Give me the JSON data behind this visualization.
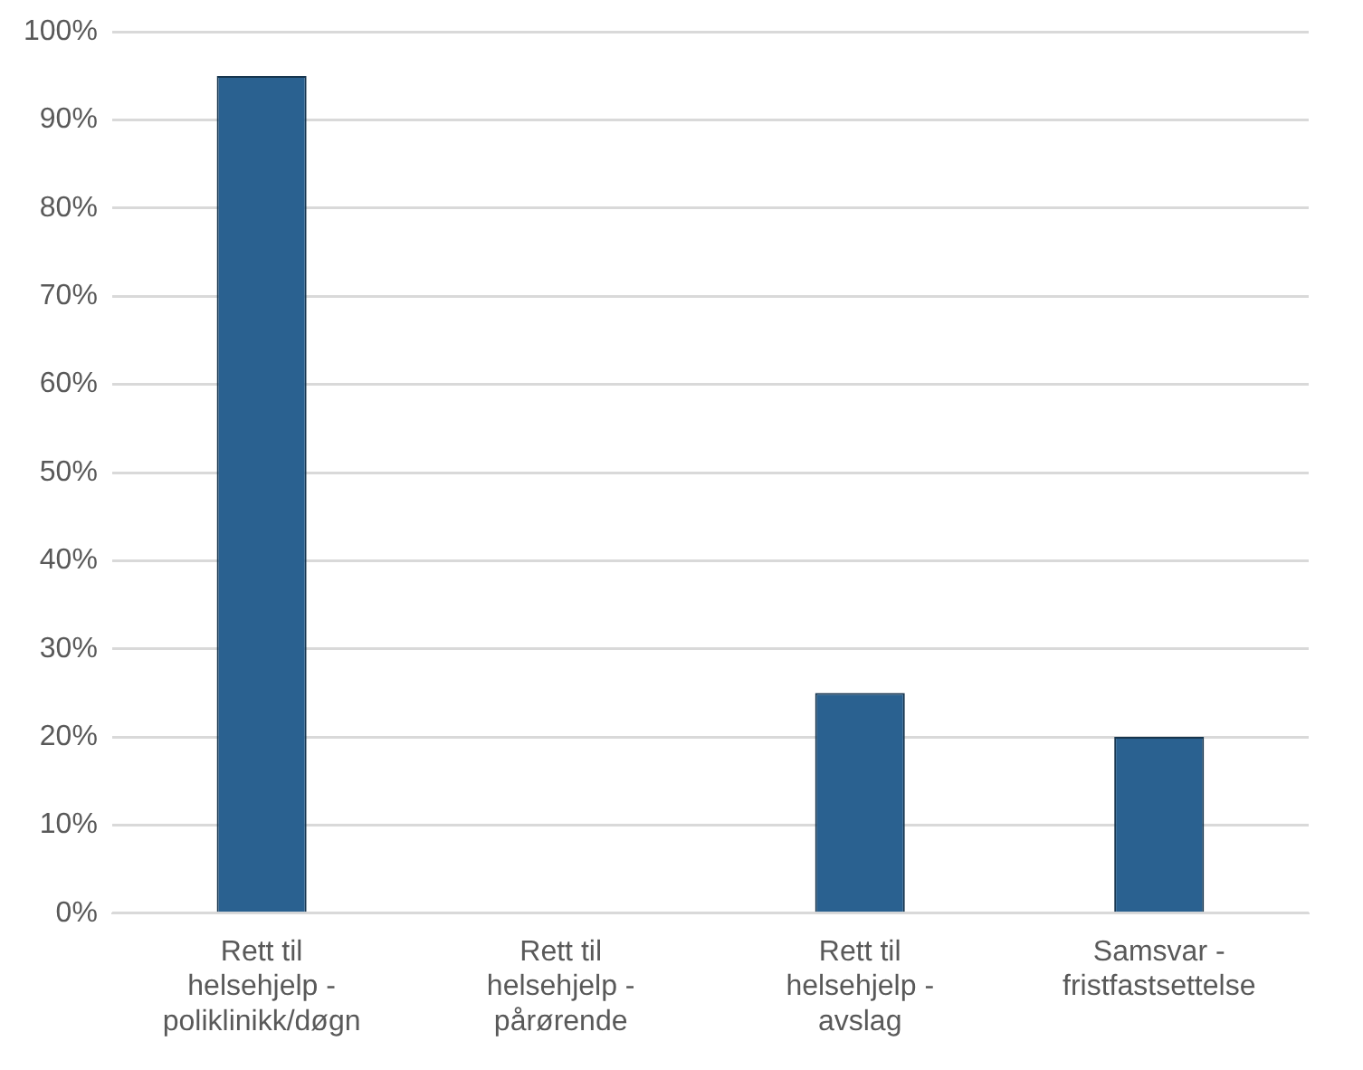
{
  "chart_data": {
    "type": "bar",
    "categories": [
      "Rett til helsehjelp - poliklinikk/døgn",
      "Rett til helsehjelp - pårørende",
      "Rett til helsehjelp - avslag",
      "Samsvar - fristfastsettelse"
    ],
    "values": [
      95,
      0,
      25,
      20
    ],
    "color": "#2a6190",
    "ylim": [
      0,
      100
    ],
    "yticks": [
      {
        "value": 0,
        "label": "0%"
      },
      {
        "value": 10,
        "label": "10%"
      },
      {
        "value": 20,
        "label": "20%"
      },
      {
        "value": 30,
        "label": "30%"
      },
      {
        "value": 40,
        "label": "40%"
      },
      {
        "value": 50,
        "label": "50%"
      },
      {
        "value": 60,
        "label": "60%"
      },
      {
        "value": 70,
        "label": "70%"
      },
      {
        "value": 80,
        "label": "80%"
      },
      {
        "value": 90,
        "label": "90%"
      },
      {
        "value": 100,
        "label": "100%"
      }
    ],
    "grid": "y"
  }
}
